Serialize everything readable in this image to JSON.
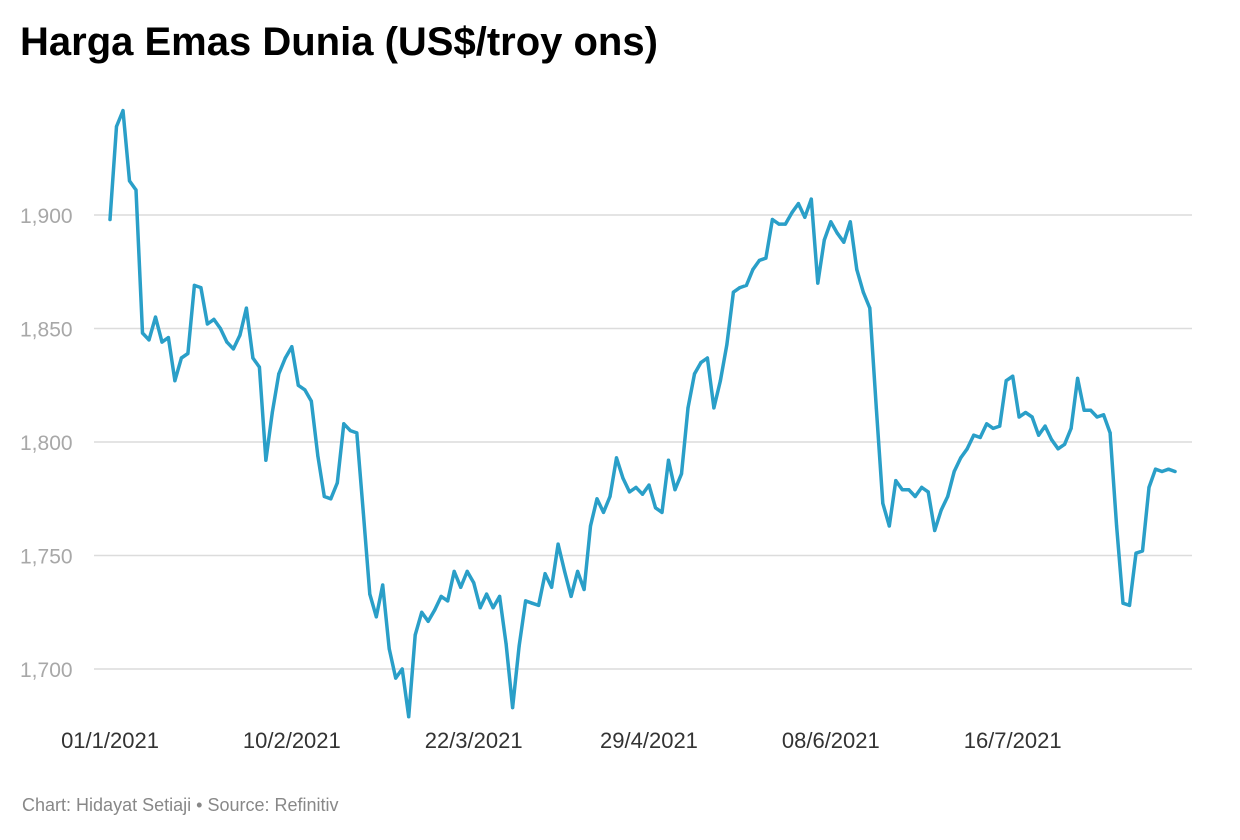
{
  "title": "Harga Emas Dunia (US$/troy ons)",
  "footer": {
    "credit_label": "Chart:",
    "author": "Hidayat Setiaji",
    "separator": "•",
    "source_label": "Source:",
    "source": "Refinitiv"
  },
  "colors": {
    "line": "#2a9fc8",
    "grid": "#dcdcdc",
    "title": "#000000",
    "ytick": "#a8a8a8",
    "xtick": "#333333",
    "footer": "#888888"
  },
  "chart_data": {
    "type": "line",
    "title": "Harga Emas Dunia (US$/troy ons)",
    "xlabel": "",
    "ylabel": "",
    "ylim": [
      1680,
      1950
    ],
    "yticks": [
      1700,
      1750,
      1800,
      1850,
      1900
    ],
    "ytick_labels": [
      "1,700",
      "1,750",
      "1,800",
      "1,850",
      "1,900"
    ],
    "x_tick_labels": [
      "01/1/2021",
      "10/2/2021",
      "22/3/2021",
      "29/4/2021",
      "08/6/2021",
      "16/7/2021"
    ],
    "x_tick_indices": [
      0,
      28,
      56,
      83,
      111,
      139
    ],
    "grid": true,
    "legend": "none",
    "series": [
      {
        "values": [
          1898,
          1939,
          1946,
          1915,
          1911,
          1848,
          1845,
          1855,
          1844,
          1846,
          1827,
          1837,
          1839,
          1869,
          1868,
          1852,
          1854,
          1850,
          1844,
          1841,
          1847,
          1859,
          1837,
          1833,
          1792,
          1813,
          1830,
          1837,
          1842,
          1825,
          1823,
          1818,
          1794,
          1776,
          1775,
          1782,
          1808,
          1805,
          1804,
          1769,
          1733,
          1723,
          1737,
          1709,
          1696,
          1700,
          1679,
          1715,
          1725,
          1721,
          1726,
          1732,
          1730,
          1743,
          1736,
          1743,
          1738,
          1727,
          1733,
          1727,
          1732,
          1711,
          1683,
          1710,
          1730,
          1729,
          1728,
          1742,
          1736,
          1755,
          1743,
          1732,
          1743,
          1735,
          1763,
          1775,
          1769,
          1776,
          1793,
          1784,
          1778,
          1780,
          1777,
          1781,
          1771,
          1769,
          1792,
          1779,
          1786,
          1815,
          1830,
          1835,
          1837,
          1815,
          1827,
          1843,
          1866,
          1868,
          1869,
          1876,
          1880,
          1881,
          1898,
          1896,
          1896,
          1901,
          1905,
          1899,
          1907,
          1870,
          1889,
          1897,
          1892,
          1888,
          1897,
          1876,
          1866,
          1859,
          1815,
          1773,
          1763,
          1783,
          1779,
          1779,
          1776,
          1780,
          1778,
          1761,
          1770,
          1776,
          1787,
          1793,
          1797,
          1803,
          1802,
          1808,
          1806,
          1807,
          1827,
          1829,
          1811,
          1813,
          1811,
          1803,
          1807,
          1801,
          1797,
          1799,
          1806,
          1828,
          1814,
          1814,
          1811,
          1812,
          1804,
          1763,
          1729,
          1728,
          1751,
          1752,
          1780,
          1788,
          1787,
          1788,
          1787
        ]
      }
    ]
  }
}
